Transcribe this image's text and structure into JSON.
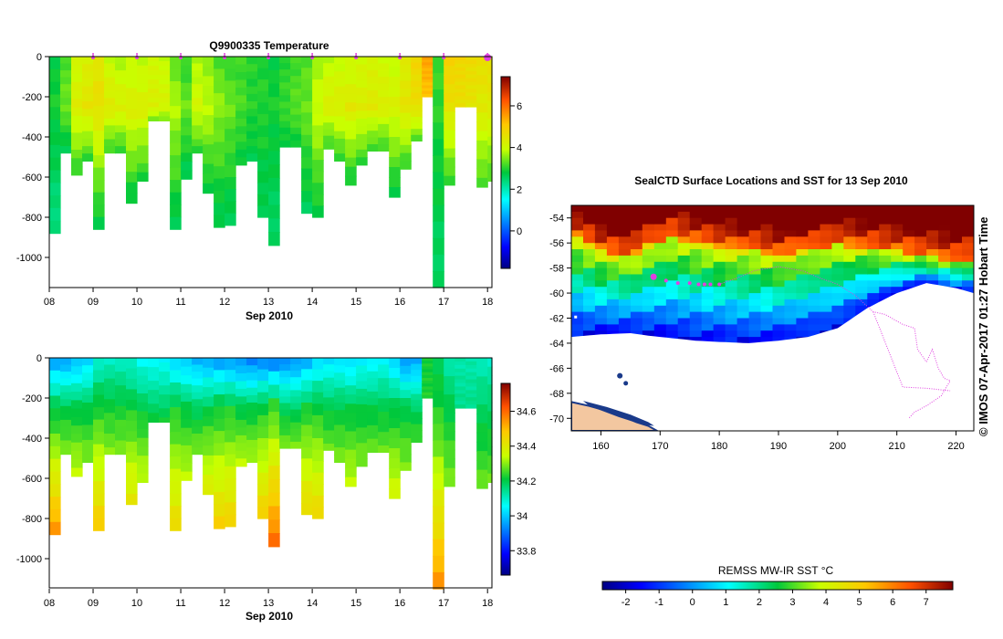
{
  "figure": {
    "credit": "© IMOS 07-Apr-2017 01:27 Hobart Time",
    "colors": {
      "land": "#f3c7a0",
      "track": "#e040e0",
      "ice": "#ffffff",
      "frame": "#000000"
    }
  },
  "chart_data": [
    {
      "id": "temperature_section",
      "type": "heatmap",
      "title": "Q9900335  Temperature",
      "xlabel": "Sep 2010",
      "ylabel": "",
      "xlim": [
        8.0,
        18.1
      ],
      "ylim": [
        -1150,
        0
      ],
      "x_ticks": [
        8,
        9,
        10,
        11,
        12,
        13,
        14,
        15,
        16,
        17,
        18
      ],
      "x_tick_labels": [
        "08",
        "09",
        "10",
        "11",
        "12",
        "13",
        "14",
        "15",
        "16",
        "17",
        "18"
      ],
      "y_ticks": [
        0,
        -200,
        -400,
        -600,
        -800,
        -1000
      ],
      "y_tick_labels": [
        "0",
        "-200",
        "-400",
        "-600",
        "-800",
        "-1000"
      ],
      "colorbar": {
        "min": -1.8,
        "max": 7.4,
        "ticks": [
          0,
          2,
          4,
          6
        ],
        "tick_labels": [
          "0",
          "2",
          "4",
          "6"
        ]
      },
      "profile_markers_days": [
        9,
        10,
        11,
        12,
        13,
        14,
        15,
        16,
        17,
        18
      ],
      "profiles": [
        {
          "t": 8.0,
          "d": 880,
          "s": 2.8,
          "m": 2.9,
          "dp": 2.3
        },
        {
          "t": 8.25,
          "d": 480,
          "s": 3.2,
          "m": 3.4,
          "dp": 2.6
        },
        {
          "t": 8.5,
          "d": 590,
          "s": 4.0,
          "m": 4.3,
          "dp": 3.0
        },
        {
          "t": 8.75,
          "d": 520,
          "s": 4.2,
          "m": 4.5,
          "dp": 3.0
        },
        {
          "t": 9.0,
          "d": 860,
          "s": 4.4,
          "m": 4.6,
          "dp": 2.6
        },
        {
          "t": 9.25,
          "d": 480,
          "s": 3.9,
          "m": 4.4,
          "dp": 3.0
        },
        {
          "t": 9.5,
          "d": 480,
          "s": 3.7,
          "m": 4.3,
          "dp": 3.0
        },
        {
          "t": 9.75,
          "d": 730,
          "s": 3.8,
          "m": 4.3,
          "dp": 2.7
        },
        {
          "t": 10.0,
          "d": 620,
          "s": 3.8,
          "m": 4.3,
          "dp": 2.9
        },
        {
          "t": 10.25,
          "d": 320,
          "s": 4.0,
          "m": 4.3,
          "dp": 3.3
        },
        {
          "t": 10.5,
          "d": 320,
          "s": 3.9,
          "m": 4.2,
          "dp": 3.3
        },
        {
          "t": 10.75,
          "d": 860,
          "s": 3.3,
          "m": 3.8,
          "dp": 2.6
        },
        {
          "t": 11.0,
          "d": 610,
          "s": 3.0,
          "m": 3.4,
          "dp": 2.6
        },
        {
          "t": 11.25,
          "d": 480,
          "s": 3.7,
          "m": 4.1,
          "dp": 3.0
        },
        {
          "t": 11.5,
          "d": 680,
          "s": 3.5,
          "m": 3.9,
          "dp": 2.7
        },
        {
          "t": 11.75,
          "d": 850,
          "s": 3.2,
          "m": 3.6,
          "dp": 2.6
        },
        {
          "t": 12.0,
          "d": 840,
          "s": 3.1,
          "m": 3.4,
          "dp": 2.6
        },
        {
          "t": 12.25,
          "d": 540,
          "s": 3.1,
          "m": 3.2,
          "dp": 2.8
        },
        {
          "t": 12.5,
          "d": 520,
          "s": 3.0,
          "m": 3.0,
          "dp": 2.7
        },
        {
          "t": 12.75,
          "d": 800,
          "s": 2.9,
          "m": 3.0,
          "dp": 2.6
        },
        {
          "t": 13.0,
          "d": 940,
          "s": 2.8,
          "m": 2.9,
          "dp": 2.5
        },
        {
          "t": 13.25,
          "d": 450,
          "s": 3.0,
          "m": 3.1,
          "dp": 2.8
        },
        {
          "t": 13.5,
          "d": 450,
          "s": 3.1,
          "m": 3.3,
          "dp": 2.8
        },
        {
          "t": 13.75,
          "d": 780,
          "s": 3.2,
          "m": 3.4,
          "dp": 2.6
        },
        {
          "t": 14.0,
          "d": 800,
          "s": 3.6,
          "m": 4.0,
          "dp": 2.7
        },
        {
          "t": 14.25,
          "d": 460,
          "s": 3.8,
          "m": 4.3,
          "dp": 3.0
        },
        {
          "t": 14.5,
          "d": 520,
          "s": 3.9,
          "m": 4.3,
          "dp": 3.0
        },
        {
          "t": 14.75,
          "d": 640,
          "s": 3.9,
          "m": 4.4,
          "dp": 2.8
        },
        {
          "t": 15.0,
          "d": 540,
          "s": 4.0,
          "m": 4.3,
          "dp": 3.0
        },
        {
          "t": 15.25,
          "d": 470,
          "s": 4.1,
          "m": 4.4,
          "dp": 3.0
        },
        {
          "t": 15.5,
          "d": 470,
          "s": 4.0,
          "m": 4.3,
          "dp": 3.0
        },
        {
          "t": 15.75,
          "d": 700,
          "s": 3.9,
          "m": 4.2,
          "dp": 2.7
        },
        {
          "t": 16.0,
          "d": 560,
          "s": 4.3,
          "m": 4.5,
          "dp": 3.0
        },
        {
          "t": 16.25,
          "d": 420,
          "s": 4.8,
          "m": 4.6,
          "dp": 3.2
        },
        {
          "t": 16.5,
          "d": 200,
          "s": 5.5,
          "m": 5.0,
          "dp": 5.0
        },
        {
          "t": 16.75,
          "d": 1150,
          "s": 3.2,
          "m": 3.0,
          "dp": 2.5
        },
        {
          "t": 17.0,
          "d": 640,
          "s": 5.0,
          "m": 4.5,
          "dp": 3.0
        },
        {
          "t": 17.25,
          "d": 250,
          "s": 4.8,
          "m": 4.6,
          "dp": 4.0
        },
        {
          "t": 17.5,
          "d": 250,
          "s": 4.7,
          "m": 4.5,
          "dp": 4.0
        },
        {
          "t": 17.75,
          "d": 650,
          "s": 4.6,
          "m": 4.4,
          "dp": 3.1
        },
        {
          "t": 18.0,
          "d": 620,
          "s": 4.6,
          "m": 4.4,
          "dp": 3.1
        }
      ]
    },
    {
      "id": "salinity_section",
      "type": "heatmap",
      "title": "",
      "xlabel": "Sep 2010",
      "ylabel": "",
      "xlim": [
        8.0,
        18.1
      ],
      "ylim": [
        -1150,
        0
      ],
      "x_ticks": [
        8,
        9,
        10,
        11,
        12,
        13,
        14,
        15,
        16,
        17,
        18
      ],
      "x_tick_labels": [
        "08",
        "09",
        "10",
        "11",
        "12",
        "13",
        "14",
        "15",
        "16",
        "17",
        "18"
      ],
      "y_ticks": [
        0,
        -200,
        -400,
        -600,
        -800,
        -1000
      ],
      "y_tick_labels": [
        "0",
        "-200",
        "-400",
        "-600",
        "-800",
        "-1000"
      ],
      "colorbar": {
        "min": 33.66,
        "max": 34.76,
        "ticks": [
          33.8,
          34,
          34.2,
          34.4,
          34.6
        ],
        "tick_labels": [
          "33.8",
          "34",
          "34.2",
          "34.4",
          "34.6"
        ]
      },
      "profiles": [
        {
          "t": 8.0,
          "d": 880,
          "s": 33.95,
          "m": 34.2,
          "dp": 34.55
        },
        {
          "t": 8.25,
          "d": 480,
          "s": 33.95,
          "m": 34.2,
          "dp": 34.3
        },
        {
          "t": 8.5,
          "d": 590,
          "s": 33.97,
          "m": 34.2,
          "dp": 34.35
        },
        {
          "t": 8.75,
          "d": 520,
          "s": 34.0,
          "m": 34.2,
          "dp": 34.3
        },
        {
          "t": 9.0,
          "d": 860,
          "s": 34.08,
          "m": 34.23,
          "dp": 34.48
        },
        {
          "t": 9.25,
          "d": 480,
          "s": 34.1,
          "m": 34.22,
          "dp": 34.3
        },
        {
          "t": 9.5,
          "d": 480,
          "s": 34.1,
          "m": 34.22,
          "dp": 34.3
        },
        {
          "t": 9.75,
          "d": 730,
          "s": 34.08,
          "m": 34.22,
          "dp": 34.42
        },
        {
          "t": 10.0,
          "d": 620,
          "s": 34.05,
          "m": 34.2,
          "dp": 34.35
        },
        {
          "t": 10.25,
          "d": 320,
          "s": 34.05,
          "m": 34.18,
          "dp": 34.22
        },
        {
          "t": 10.5,
          "d": 320,
          "s": 34.05,
          "m": 34.18,
          "dp": 34.22
        },
        {
          "t": 10.75,
          "d": 860,
          "s": 34.0,
          "m": 34.22,
          "dp": 34.45
        },
        {
          "t": 11.0,
          "d": 610,
          "s": 33.98,
          "m": 34.2,
          "dp": 34.35
        },
        {
          "t": 11.25,
          "d": 480,
          "s": 33.96,
          "m": 34.18,
          "dp": 34.3
        },
        {
          "t": 11.5,
          "d": 680,
          "s": 33.95,
          "m": 34.2,
          "dp": 34.4
        },
        {
          "t": 11.75,
          "d": 850,
          "s": 33.94,
          "m": 34.22,
          "dp": 34.47
        },
        {
          "t": 12.0,
          "d": 840,
          "s": 33.94,
          "m": 34.22,
          "dp": 34.47
        },
        {
          "t": 12.25,
          "d": 540,
          "s": 33.92,
          "m": 34.2,
          "dp": 34.35
        },
        {
          "t": 12.5,
          "d": 520,
          "s": 33.9,
          "m": 34.2,
          "dp": 34.33
        },
        {
          "t": 12.75,
          "d": 800,
          "s": 33.9,
          "m": 34.22,
          "dp": 34.47
        },
        {
          "t": 13.0,
          "d": 940,
          "s": 33.9,
          "m": 34.25,
          "dp": 34.6
        },
        {
          "t": 13.25,
          "d": 450,
          "s": 33.92,
          "m": 34.18,
          "dp": 34.3
        },
        {
          "t": 13.5,
          "d": 450,
          "s": 33.93,
          "m": 34.18,
          "dp": 34.3
        },
        {
          "t": 13.75,
          "d": 780,
          "s": 33.95,
          "m": 34.22,
          "dp": 34.45
        },
        {
          "t": 14.0,
          "d": 800,
          "s": 34.0,
          "m": 34.22,
          "dp": 34.45
        },
        {
          "t": 14.25,
          "d": 460,
          "s": 34.02,
          "m": 34.2,
          "dp": 34.28
        },
        {
          "t": 14.5,
          "d": 520,
          "s": 34.02,
          "m": 34.2,
          "dp": 34.3
        },
        {
          "t": 14.75,
          "d": 640,
          "s": 34.0,
          "m": 34.2,
          "dp": 34.35
        },
        {
          "t": 15.0,
          "d": 540,
          "s": 34.03,
          "m": 34.2,
          "dp": 34.3
        },
        {
          "t": 15.25,
          "d": 470,
          "s": 34.03,
          "m": 34.2,
          "dp": 34.28
        },
        {
          "t": 15.5,
          "d": 470,
          "s": 34.05,
          "m": 34.2,
          "dp": 34.28
        },
        {
          "t": 15.75,
          "d": 700,
          "s": 34.0,
          "m": 34.2,
          "dp": 34.38
        },
        {
          "t": 16.0,
          "d": 560,
          "s": 33.92,
          "m": 34.2,
          "dp": 34.3
        },
        {
          "t": 16.25,
          "d": 420,
          "s": 33.95,
          "m": 34.18,
          "dp": 34.26
        },
        {
          "t": 16.5,
          "d": 200,
          "s": 34.22,
          "m": 34.23,
          "dp": 34.23
        },
        {
          "t": 16.75,
          "d": 1150,
          "s": 34.2,
          "m": 34.22,
          "dp": 34.55
        },
        {
          "t": 17.0,
          "d": 640,
          "s": 34.12,
          "m": 34.2,
          "dp": 34.3
        },
        {
          "t": 17.25,
          "d": 250,
          "s": 34.12,
          "m": 34.15,
          "dp": 34.2
        },
        {
          "t": 17.5,
          "d": 250,
          "s": 34.12,
          "m": 34.15,
          "dp": 34.2
        },
        {
          "t": 17.75,
          "d": 650,
          "s": 34.1,
          "m": 34.18,
          "dp": 34.28
        },
        {
          "t": 18.0,
          "d": 620,
          "s": 34.1,
          "m": 34.18,
          "dp": 34.28
        }
      ]
    },
    {
      "id": "sst_map",
      "type": "heatmap",
      "title": "SealCTD Surface Locations and SST for 13 Sep 2010",
      "xlabel": "",
      "ylabel": "",
      "xlim": [
        155,
        223
      ],
      "ylim": [
        -71,
        -53
      ],
      "x_ticks": [
        160,
        170,
        180,
        190,
        200,
        210,
        220
      ],
      "x_tick_labels": [
        "160",
        "170",
        "180",
        "190",
        "200",
        "210",
        "220"
      ],
      "y_ticks": [
        -54,
        -56,
        -58,
        -60,
        -62,
        -64,
        -66,
        -68,
        -70
      ],
      "y_tick_labels": [
        "-54",
        "-56",
        "-58",
        "-60",
        "-62",
        "-64",
        "-66",
        "-68",
        "-70"
      ],
      "colorbar": {
        "title": "REMSS MW-IR SST °C",
        "min": -2.7,
        "max": 7.8,
        "ticks": [
          -2,
          -1,
          0,
          1,
          2,
          3,
          4,
          5,
          6,
          7
        ],
        "tick_labels": [
          "-2",
          "-1",
          "0",
          "1",
          "2",
          "3",
          "4",
          "5",
          "6",
          "7"
        ]
      },
      "sst_field": {
        "front_lon": [
          155,
          160,
          165,
          168,
          172,
          176,
          180,
          185,
          190,
          195,
          200,
          205,
          210,
          215,
          220,
          223
        ],
        "front_lat": [
          -55.2,
          -56.5,
          -57.0,
          -56.0,
          -55.3,
          -55.8,
          -56.2,
          -56.3,
          -56.8,
          -56.3,
          -56.0,
          -56.2,
          -56.5,
          -56.8,
          -57.2,
          -57.0
        ],
        "ice_lat": [
          -63.5,
          -63.3,
          -63.2,
          -63.4,
          -63.6,
          -63.8,
          -63.9,
          -64.0,
          -63.8,
          -63.5,
          -62.8,
          -61.2,
          -60.0,
          -59.2,
          -59.6,
          -60.0
        ]
      },
      "track_points": [
        {
          "lon": 168.9,
          "lat": -58.7
        },
        {
          "lon": 171.0,
          "lat": -59.0
        },
        {
          "lon": 173.0,
          "lat": -59.2
        },
        {
          "lon": 175.0,
          "lat": -59.2
        },
        {
          "lon": 176.5,
          "lat": -59.3
        },
        {
          "lon": 177.5,
          "lat": -59.3
        },
        {
          "lon": 178.5,
          "lat": -59.3
        },
        {
          "lon": 180.0,
          "lat": -59.3
        }
      ],
      "track_path": [
        {
          "lon": 180,
          "lat": -59.3
        },
        {
          "lon": 183,
          "lat": -58.8
        },
        {
          "lon": 186,
          "lat": -58.2
        },
        {
          "lon": 190,
          "lat": -57.9
        },
        {
          "lon": 194,
          "lat": -58.2
        },
        {
          "lon": 197,
          "lat": -58.8
        },
        {
          "lon": 200,
          "lat": -59.3
        },
        {
          "lon": 203,
          "lat": -60.2
        },
        {
          "lon": 206,
          "lat": -61.5
        },
        {
          "lon": 208,
          "lat": -61.7
        },
        {
          "lon": 211,
          "lat": -62.5
        },
        {
          "lon": 213,
          "lat": -62.8
        },
        {
          "lon": 213.5,
          "lat": -64.5
        },
        {
          "lon": 215,
          "lat": -65.5
        },
        {
          "lon": 216,
          "lat": -64.5
        },
        {
          "lon": 217,
          "lat": -66.0
        },
        {
          "lon": 218,
          "lat": -66.8
        },
        {
          "lon": 219,
          "lat": -67.0
        },
        {
          "lon": 217.5,
          "lat": -68.2
        },
        {
          "lon": 215,
          "lat": -69.0
        },
        {
          "lon": 213,
          "lat": -69.5
        },
        {
          "lon": 212,
          "lat": -70.0
        }
      ],
      "track_path_west": [
        {
          "lon": 206,
          "lat": -61.5
        },
        {
          "lon": 211,
          "lat": -67.5
        },
        {
          "lon": 215,
          "lat": -67.6
        },
        {
          "lon": 219,
          "lat": -67.8
        }
      ]
    }
  ]
}
